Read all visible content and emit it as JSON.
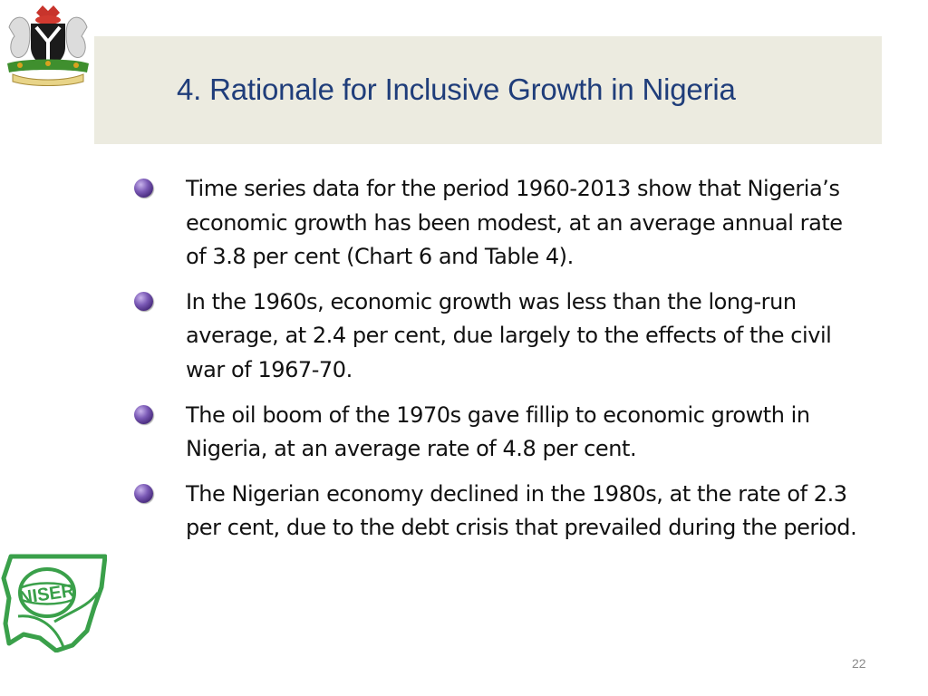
{
  "slide": {
    "title": "4. Rationale for Inclusive Growth in Nigeria",
    "bullets": [
      "Time series data for the period 1960-2013 show that Nigeria’s economic growth has been modest, at an average annual rate of 3.8 per cent (Chart 6 and Table 4).",
      "In the 1960s, economic growth was less than the long-run average, at 2.4 per cent, due largely to the effects of the civil war of 1967-70.",
      "The oil boom of the 1970s gave fillip to economic growth in Nigeria, at an average rate of 4.8 per cent.",
      "The Nigerian economy declined in the 1980s, at the rate of 2.3 per cent, due to the debt crisis that prevailed during the period."
    ],
    "page_number": "22"
  },
  "logos": {
    "top_left": "nigeria-coat-of-arms",
    "bottom_left": "NISER"
  },
  "colors": {
    "title": "#1f3d7a",
    "title_bar": "#ecebe0",
    "bullet": "#5b3a9a",
    "logo_green": "#3aa04a"
  }
}
